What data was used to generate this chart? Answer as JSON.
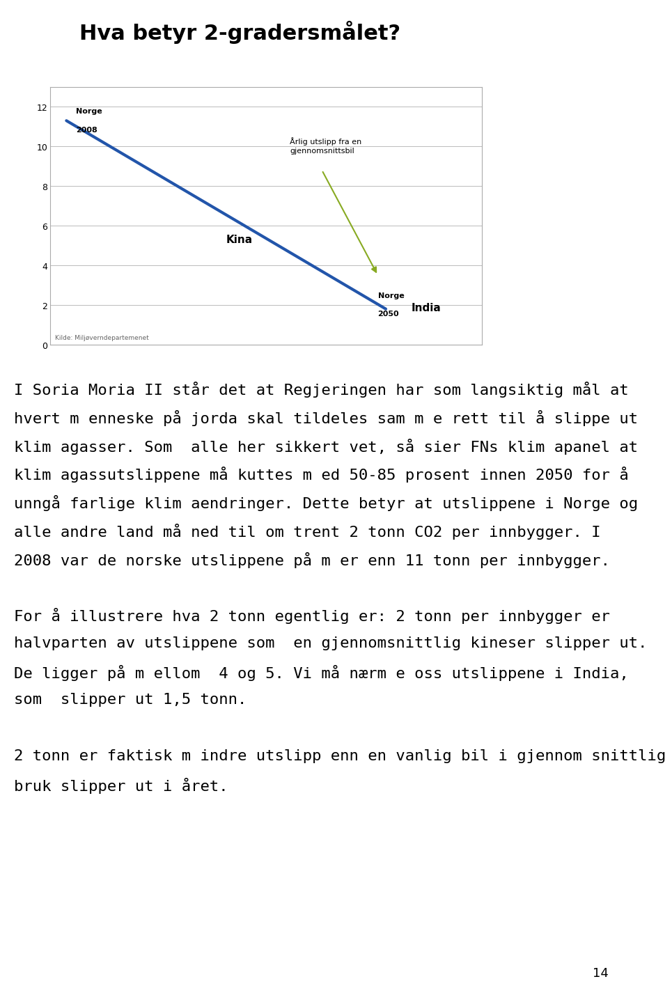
{
  "title": "Hva betyr 2-gradersmålet?",
  "title_fontsize": 22,
  "bg_color": "#f5f5e0",
  "left_bar_color": "#8dc040",
  "slide_bg": "#ffffff",
  "chart_bg": "#ffffff",
  "line_x": [
    0,
    1
  ],
  "line_y": [
    11.3,
    1.8
  ],
  "line_color": "#2255aa",
  "line_width": 3.0,
  "yticks": [
    0,
    2,
    4,
    6,
    8,
    10,
    12
  ],
  "ylim": [
    0,
    13
  ],
  "xlim": [
    -0.05,
    1.3
  ],
  "annotation_car": "Årlig utslipp fra en\ngjennomsnittsbil",
  "annotation_car_color": "#88aa22",
  "source_text": "Kilde: Miljøverndepartemenet",
  "page_number": "14",
  "para1_lines": [
    "I Soria Moria II står det at Regjeringen har som langsiktig mål at",
    "hvert m enneske på jorda skal tildeles sam m e rett til å slippe ut",
    "klim agasser. Som  alle her sikkert vet, så sier FNs klim apanel at",
    "klim agassutslippene må kuttes m ed 50-85 prosent innen 2050 for å",
    "unngå farlige klim aendringer. Dette betyr at utslippene i Norge og",
    "alle andre land må ned til om trent 2 tonn CO2 per innbygger. I",
    "2008 var de norske utslippene på m er enn 11 tonn per innbygger."
  ],
  "para2_lines": [
    "For å illustrere hva 2 tonn egentlig er: 2 tonn per innbygger er",
    "halvparten av utslippene som  en gjennomsnittlig kineser slipper ut.",
    "De ligger på m ellom  4 og 5. Vi må nærm e oss utslippene i India,",
    "som  slipper ut 1,5 tonn."
  ],
  "para3_lines": [
    "2 tonn er faktisk m indre utslipp enn en vanlig bil i gjennom snittlig",
    "bruk slipper ut i året."
  ],
  "text_fontsize": 16,
  "footnote_fontsize": 13
}
